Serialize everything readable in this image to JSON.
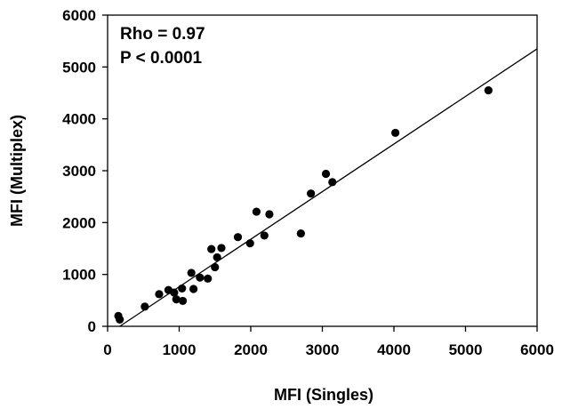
{
  "chart_data": {
    "type": "scatter",
    "xlabel": "MFI (Singles)",
    "ylabel": "MFI (Multiplex)",
    "xlim": [
      0,
      6000
    ],
    "ylim": [
      0,
      6000
    ],
    "x_ticks": [
      "0",
      "1000",
      "2000",
      "3000",
      "4000",
      "5000",
      "6000"
    ],
    "y_ticks": [
      "0",
      "1000",
      "2000",
      "3000",
      "4000",
      "5000",
      "6000"
    ],
    "grid": false,
    "annotations": [
      "Rho = 0.97",
      "P < 0.0001"
    ],
    "series": [
      {
        "points": [
          [
            150,
            200
          ],
          [
            170,
            130
          ],
          [
            520,
            380
          ],
          [
            720,
            620
          ],
          [
            850,
            700
          ],
          [
            930,
            650
          ],
          [
            960,
            520
          ],
          [
            1040,
            730
          ],
          [
            1050,
            490
          ],
          [
            1170,
            1030
          ],
          [
            1200,
            720
          ],
          [
            1290,
            940
          ],
          [
            1400,
            920
          ],
          [
            1450,
            1490
          ],
          [
            1500,
            1140
          ],
          [
            1530,
            1330
          ],
          [
            1590,
            1510
          ],
          [
            1820,
            1720
          ],
          [
            1990,
            1600
          ],
          [
            2080,
            2210
          ],
          [
            2190,
            1750
          ],
          [
            2260,
            2160
          ],
          [
            2700,
            1790
          ],
          [
            2840,
            2560
          ],
          [
            3050,
            2940
          ],
          [
            3140,
            2780
          ],
          [
            4020,
            3730
          ],
          [
            5320,
            4550
          ]
        ]
      }
    ],
    "trendline": {
      "x": [
        170,
        6000
      ],
      "y": [
        0,
        5350
      ]
    }
  }
}
